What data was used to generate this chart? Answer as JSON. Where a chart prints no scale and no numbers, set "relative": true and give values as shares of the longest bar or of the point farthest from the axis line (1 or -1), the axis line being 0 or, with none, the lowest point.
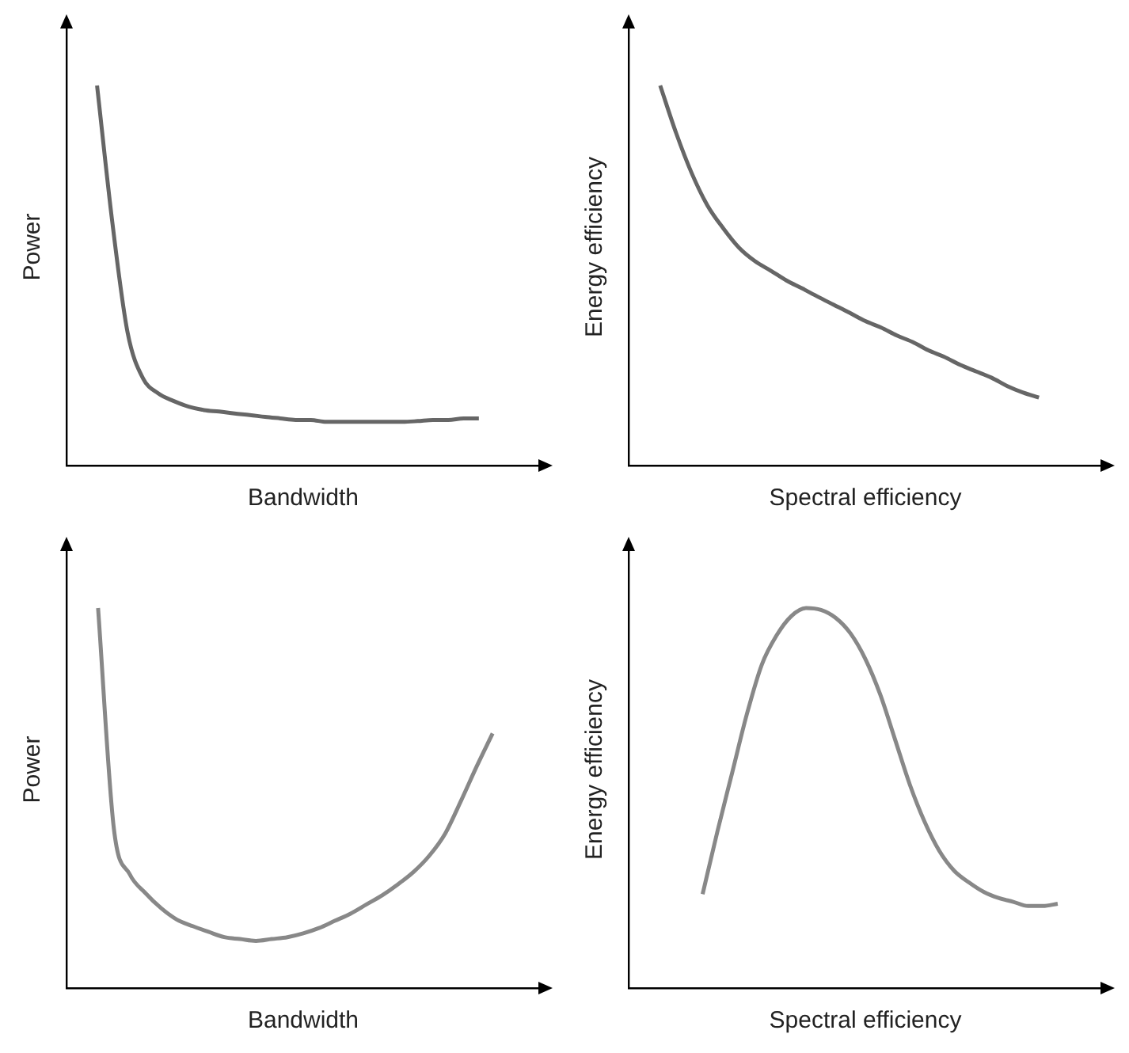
{
  "chart_data": [
    {
      "type": "line",
      "relative": true,
      "tick_labels": false,
      "xlabel": "Bandwidth",
      "ylabel": "Power",
      "color": "#666666",
      "categories": [
        null,
        null,
        null,
        null,
        null,
        null,
        null,
        null,
        null,
        null,
        null,
        null,
        null,
        null,
        null,
        null,
        null,
        null,
        null,
        null,
        null,
        null,
        null,
        null,
        null,
        null,
        null,
        null,
        null,
        null,
        null,
        null
      ],
      "values": [
        null,
        null,
        1,
        0.64,
        0.35,
        0.23,
        0.19,
        0.17,
        0.155,
        0.146,
        0.142,
        0.137,
        0.133,
        0.128,
        0.124,
        0.12,
        0.12,
        0.115,
        0.115,
        0.115,
        0.115,
        0.115,
        0.115,
        0.117,
        0.12,
        0.12,
        0.124,
        0.124,
        null,
        null,
        null,
        null
      ]
    },
    {
      "type": "line",
      "relative": true,
      "tick_labels": false,
      "xlabel": "Spectral efficiency",
      "ylabel": "Energy efficiency",
      "color": "#666666",
      "categories": [
        null,
        null,
        null,
        null,
        null,
        null,
        null,
        null,
        null,
        null,
        null,
        null,
        null,
        null,
        null,
        null,
        null,
        null,
        null,
        null,
        null,
        null,
        null,
        null,
        null,
        null,
        null,
        null,
        null,
        null,
        null
      ],
      "values": [
        null,
        null,
        1,
        0.876,
        0.769,
        0.684,
        0.624,
        0.573,
        0.538,
        0.513,
        0.487,
        0.466,
        0.444,
        0.423,
        0.402,
        0.38,
        0.363,
        0.342,
        0.325,
        0.303,
        0.286,
        0.265,
        0.248,
        0.231,
        0.209,
        0.192,
        0.179,
        null,
        null,
        null,
        null
      ]
    },
    {
      "type": "line",
      "relative": true,
      "tick_labels": false,
      "xlabel": "Bandwidth",
      "ylabel": "Power",
      "color": "#888888",
      "categories": [
        null,
        null,
        null,
        null,
        null,
        null,
        null,
        null,
        null,
        null,
        null,
        null,
        null,
        null,
        null,
        null,
        null,
        null,
        null,
        null,
        null,
        null,
        null,
        null,
        null,
        null,
        null,
        null,
        null,
        null,
        null
      ],
      "values": [
        null,
        null,
        1,
        0.42,
        0.3,
        0.25,
        0.21,
        0.18,
        0.163,
        0.148,
        0.134,
        0.129,
        0.124,
        0.129,
        0.134,
        0.144,
        0.158,
        0.177,
        0.196,
        0.22,
        0.244,
        0.273,
        0.306,
        0.349,
        0.407,
        0.493,
        0.584,
        0.67,
        null,
        null,
        null
      ]
    },
    {
      "type": "line",
      "relative": true,
      "tick_labels": false,
      "xlabel": "Spectral efficiency",
      "ylabel": "Energy efficiency",
      "color": "#888888",
      "categories": [
        null,
        null,
        null,
        null,
        null,
        null,
        null,
        null,
        null,
        null,
        null,
        null,
        null,
        null,
        null,
        null,
        null,
        null,
        null,
        null,
        null,
        null,
        null,
        null,
        null,
        null,
        null,
        null,
        null,
        null,
        null,
        null,
        null
      ],
      "values": [
        null,
        null,
        null,
        null,
        null,
        0.247,
        0.412,
        0.567,
        0.722,
        0.851,
        0.928,
        0.979,
        1,
        0.995,
        0.974,
        0.933,
        0.866,
        0.773,
        0.655,
        0.536,
        0.438,
        0.361,
        0.309,
        0.278,
        0.253,
        0.237,
        0.227,
        0.216,
        0.216,
        0.222,
        null,
        null,
        null
      ]
    }
  ]
}
